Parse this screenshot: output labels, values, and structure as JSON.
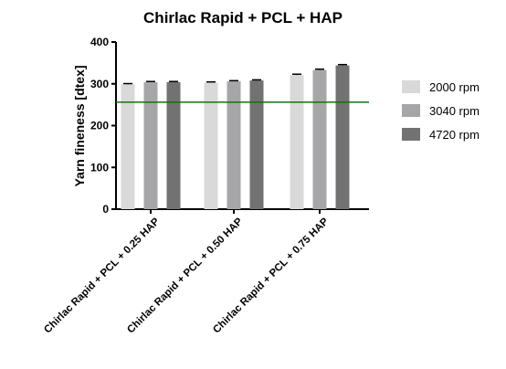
{
  "chart_data": {
    "type": "bar",
    "title": "Chirlac Rapid + PCL + HAP",
    "xlabel": "",
    "ylabel": "Yarn fineness [dtex]",
    "ylim": [
      0,
      400
    ],
    "yticks": [
      0,
      100,
      200,
      300,
      400
    ],
    "categories": [
      "Chirlac Rapid + PCL + 0.25 HAP",
      "Chirlac Rapid + PCL + 0.50 HAP",
      "Chirlac Rapid + PCL + 0.75 HAP"
    ],
    "series": [
      {
        "name": "2000 rpm",
        "color": "#d9d9d9",
        "values": [
          299,
          303,
          321
        ],
        "errors": [
          1.5,
          1.5,
          2
        ]
      },
      {
        "name": "3040 rpm",
        "color": "#a6a6a8",
        "values": [
          304,
          306,
          333
        ],
        "errors": [
          1.5,
          1.5,
          2
        ]
      },
      {
        "name": "4720 rpm",
        "color": "#727272",
        "values": [
          304,
          308,
          344
        ],
        "errors": [
          1.5,
          1.5,
          2
        ]
      }
    ],
    "reference_line": {
      "value": 256,
      "color": "#1a6e1a"
    },
    "grid": false,
    "legend_position": "right"
  }
}
